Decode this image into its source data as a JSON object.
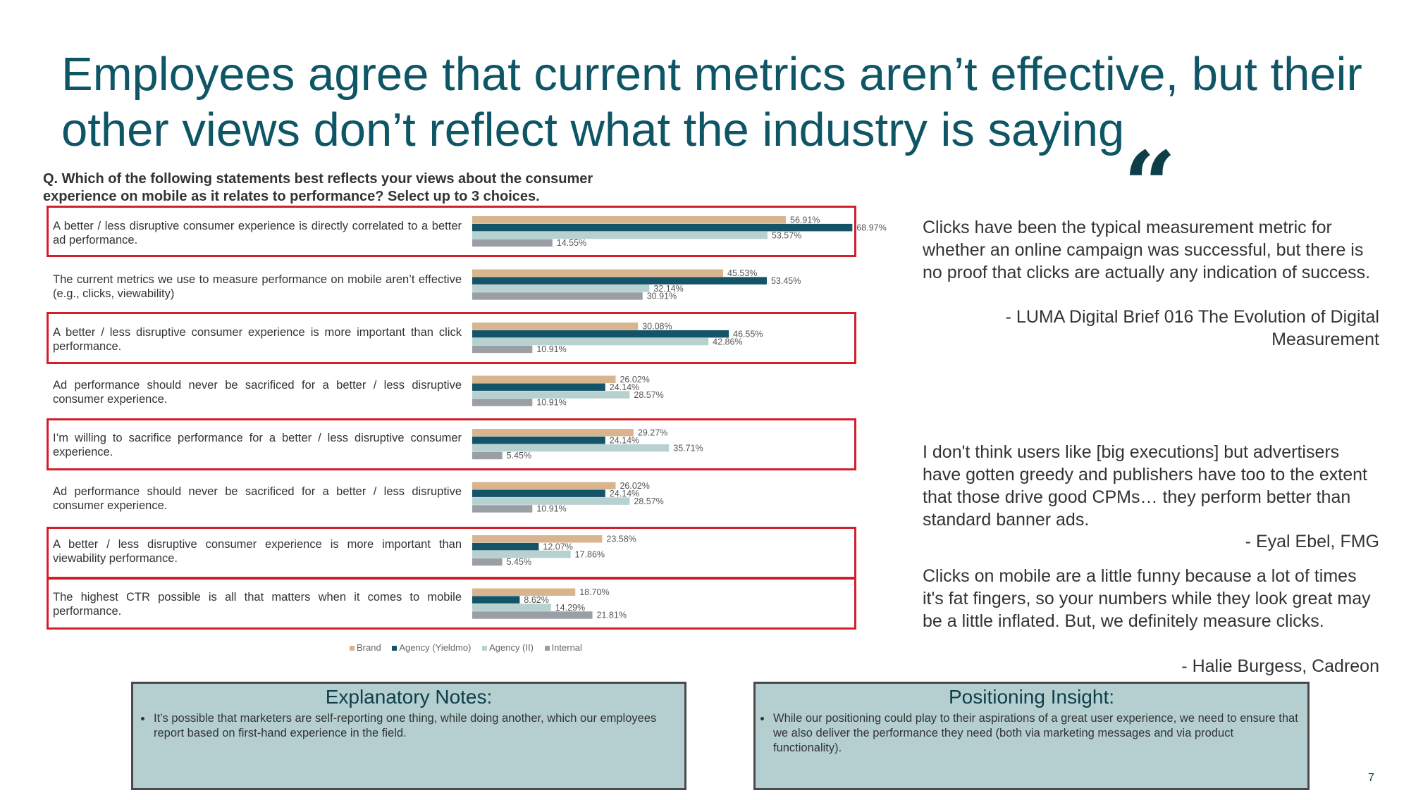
{
  "title": "Employees agree that current metrics aren’t effective, but their other views don’t reflect what the industry is saying",
  "question": "Q. Which of the following statements best reflects your views about the consumer experience on mobile as it relates to performance? Select up to 3 choices.",
  "colors": {
    "title": "#0e5566",
    "brand": "#d8b48f",
    "agency_yieldmo": "#135468",
    "agency_ii": "#b7d1d1",
    "internal": "#9a9fa6",
    "highlight_border": "#d21f2a",
    "note_box_bg": "#b5cfd0"
  },
  "chart_data": {
    "type": "bar",
    "orientation": "horizontal",
    "categories": [
      "A better / less disruptive consumer experience is directly correlated to a better ad performance.",
      "The current metrics we use to measure performance on mobile aren’t effective (e.g., clicks, viewability)",
      "A better / less disruptive consumer experience is more important than click performance.",
      "Ad performance should never be sacrificed for a better / less disruptive consumer experience.",
      "I’m willing to sacrifice performance for a better / less disruptive consumer experience.",
      "Ad performance should never be sacrificed for a better / less disruptive consumer experience.",
      "A better / less disruptive consumer experience is more important than viewability performance.",
      "The highest CTR possible is all that matters when it comes to mobile performance."
    ],
    "highlighted_rows": [
      0,
      2,
      4,
      6,
      7
    ],
    "series": [
      {
        "name": "Brand",
        "values": [
          56.91,
          45.53,
          30.08,
          26.02,
          29.27,
          26.02,
          23.58,
          18.7
        ],
        "labels": [
          "56.91%",
          "45.53%",
          "30.08%",
          "26.02%",
          "29.27%",
          "26.02%",
          "23.58%",
          "18.70%"
        ]
      },
      {
        "name": "Agency (Yieldmo)",
        "values": [
          68.97,
          53.45,
          46.55,
          24.14,
          24.14,
          24.14,
          12.07,
          8.62
        ],
        "labels": [
          "68.97%",
          "53.45%",
          "46.55%",
          "24.14%",
          "24.14%",
          "24.14%",
          "12.07%",
          "8.62%"
        ]
      },
      {
        "name": "Agency (II)",
        "values": [
          53.57,
          32.14,
          42.86,
          28.57,
          35.71,
          28.57,
          17.86,
          14.29
        ],
        "labels": [
          "53.57%",
          "32.14%",
          "42.86%",
          "28.57%",
          "35.71%",
          "28.57%",
          "17.86%",
          "14.29%"
        ]
      },
      {
        "name": "Internal",
        "values": [
          14.55,
          30.91,
          10.91,
          10.91,
          5.45,
          10.91,
          5.45,
          21.81
        ],
        "labels": [
          "14.55%",
          "30.91%",
          "10.91%",
          "10.91%",
          "5.45%",
          "10.91%",
          "5.45%",
          "21.81%"
        ]
      }
    ],
    "legend_position": "bottom",
    "grid": false
  },
  "quote_mark": "“",
  "quotes": [
    {
      "text": "Clicks have been the typical measurement metric for whether an online campaign was successful, but there is no proof that clicks are actually any indication of success.",
      "attribution": "- LUMA Digital Brief 016 The Evolution of Digital Measurement"
    },
    {
      "text": "I don't think users like [big executions] but advertisers have gotten greedy and publishers have too to the extent that those drive good CPMs… they perform better than standard banner ads.",
      "attribution": "- Eyal Ebel, FMG"
    },
    {
      "text": "Clicks on mobile are a little funny because a lot of times it's fat fingers, so your numbers while they look great may be a little inflated. But, we definitely measure clicks.",
      "attribution": "- Halie Burgess, Cadreon"
    }
  ],
  "explanatory_notes": {
    "title": "Explanatory Notes:",
    "bullet": "It’s possible that marketers are self-reporting one thing, while doing another, which our employees report based on first-hand experience in the field."
  },
  "positioning_insight": {
    "title": "Positioning Insight:",
    "bullet": "While our positioning could play to their aspirations of a great user experience, we need to ensure that we also deliver the performance they need (both via marketing messages and via product functionality)."
  },
  "page_number": "7"
}
